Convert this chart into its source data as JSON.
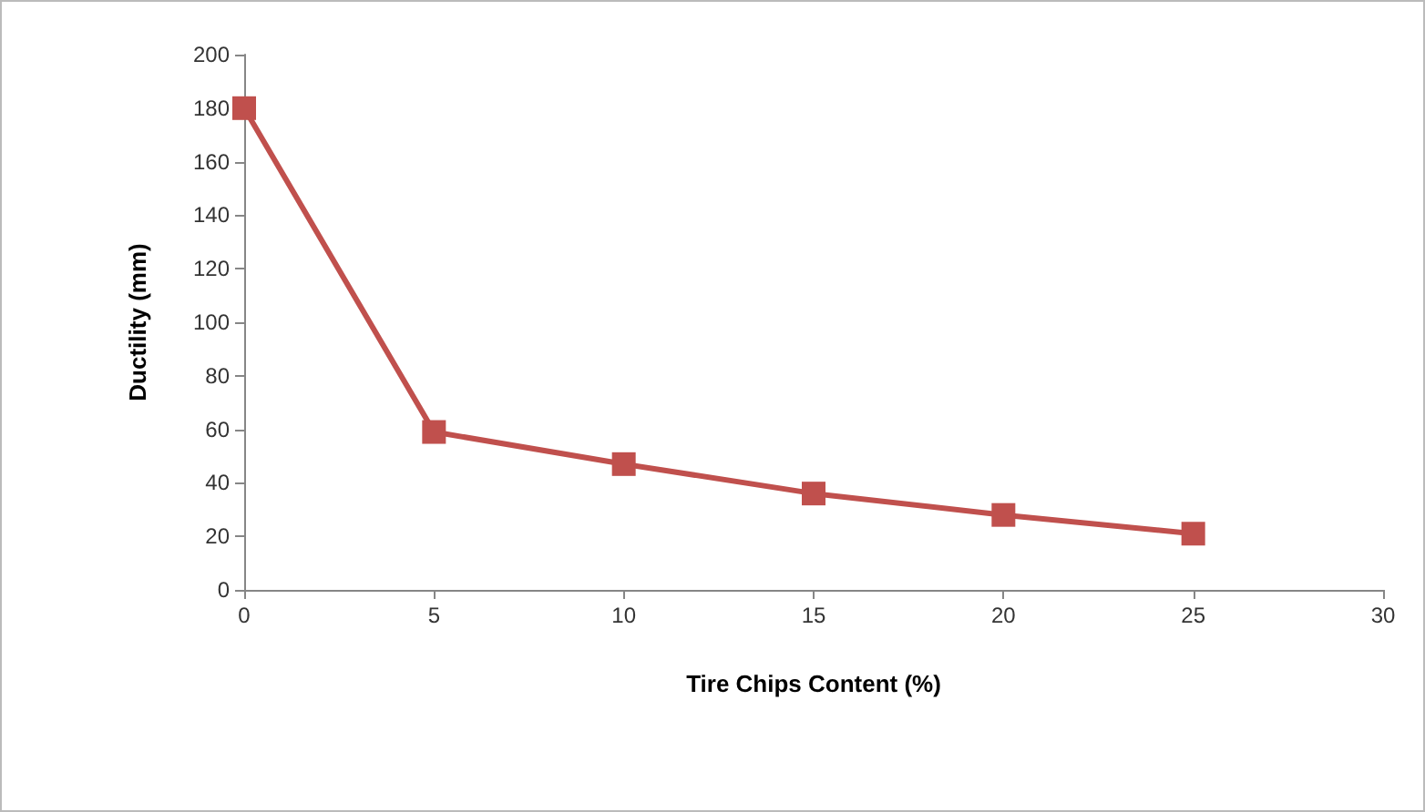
{
  "chart_data": {
    "type": "line",
    "xlabel": "Tire Chips Content (%)",
    "ylabel": "Ductility (mm)",
    "x": [
      0,
      5,
      10,
      15,
      20,
      25
    ],
    "series": [
      {
        "color": "#c0504d",
        "values": [
          180,
          59,
          47,
          36,
          28,
          21
        ]
      }
    ],
    "xlim": [
      0,
      30
    ],
    "xticks": [
      0,
      5,
      10,
      15,
      20,
      25,
      30
    ],
    "ylim": [
      0,
      200
    ],
    "yticks": [
      0,
      20,
      40,
      60,
      80,
      100,
      120,
      140,
      160,
      180,
      200
    ],
    "marker": "square",
    "line_style": "solid"
  }
}
